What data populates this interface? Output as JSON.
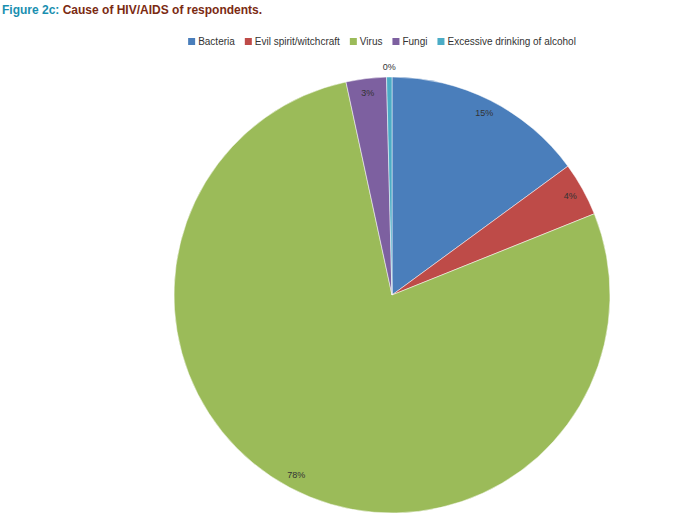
{
  "chart_data": {
    "type": "pie",
    "title": "Figure 2c: Cause of HIV/AIDS of respondents.",
    "categories": [
      "Bacteria",
      "Evil spirit/witchcraft",
      "Virus",
      "Fungi",
      "Excessive drinking of alcohol"
    ],
    "values": [
      15,
      4,
      78,
      3,
      0.4
    ],
    "value_labels": [
      "15%",
      "4%",
      "78%",
      "3%",
      "0%"
    ],
    "colors": [
      "#4a7ebb",
      "#be4b48",
      "#9bbb59",
      "#7d60a0",
      "#4bacc6"
    ],
    "legend": "top",
    "data_labels": true
  }
}
